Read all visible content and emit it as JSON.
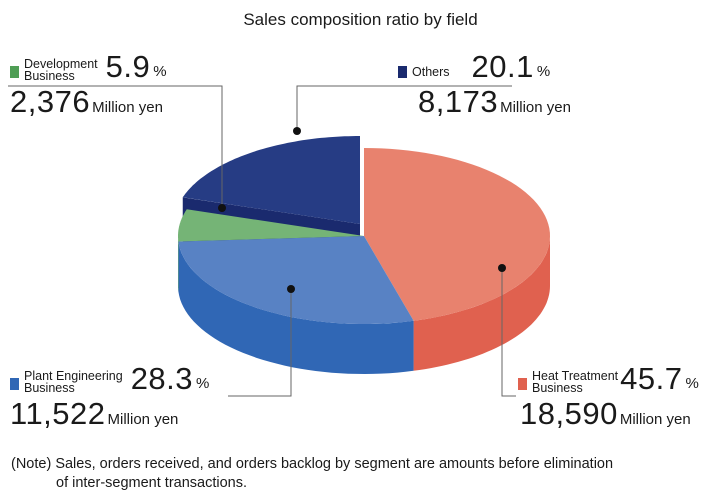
{
  "chart_data": {
    "type": "pie",
    "title": "Sales composition ratio by field",
    "slices": [
      {
        "label": "Heat Treatment Business",
        "percent": 45.7,
        "amount": "18,590",
        "color": "#e8826e",
        "side_color": "#e0614f"
      },
      {
        "label": "Plant Engineering Business",
        "percent": 28.3,
        "amount": "11,522",
        "color": "#5882c4",
        "side_color": "#3067b5"
      },
      {
        "label": "Development Business",
        "percent": 5.9,
        "amount": "2,376",
        "color": "#75b476",
        "side_color": "#4f9e55"
      },
      {
        "label": "Others",
        "percent": 20.1,
        "amount": "8,173",
        "color": "#263c84",
        "side_color": "#1a2a6e"
      }
    ],
    "percent_unit": "%",
    "amount_unit": "Million yen"
  },
  "labels": {
    "development": {
      "name_line1": "Development",
      "name_line2": "Business",
      "percent": "5.9",
      "amount": "2,376"
    },
    "others": {
      "name_line1": "Others",
      "percent": "20.1",
      "amount": "8,173"
    },
    "plant": {
      "name_line1": "Plant Engineering",
      "name_line2": "Business",
      "percent": "28.3",
      "amount": "11,522"
    },
    "heat": {
      "name_line1": "Heat Treatment",
      "name_line2": "Business",
      "percent": "45.7",
      "amount": "18,590"
    }
  },
  "note": {
    "line1": "(Note) Sales, orders received, and orders backlog by segment are amounts before elimination",
    "line2": "of inter-segment transactions."
  }
}
